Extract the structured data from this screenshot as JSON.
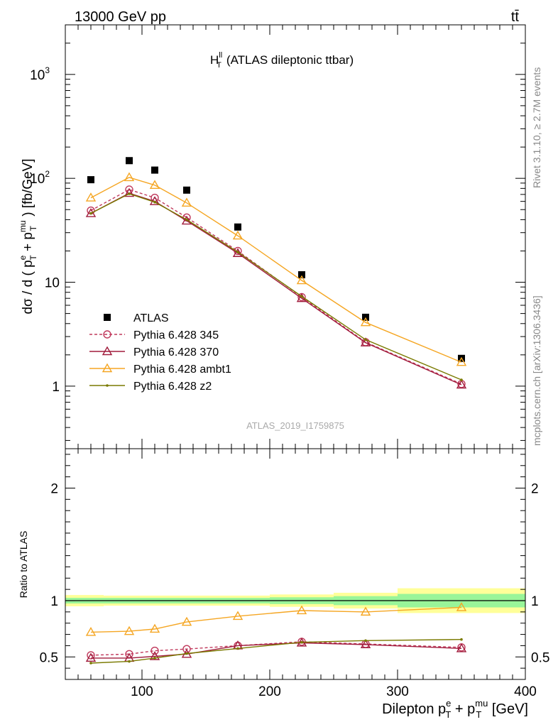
{
  "header": {
    "left": "13000 GeV pp",
    "right": "tt̄"
  },
  "side": {
    "rivet": "Rivet 3.1.10, ≥ 2.7M events",
    "mcplots": "mcplots.cern.ch [arXiv:1306.3436]"
  },
  "chart_data": [
    {
      "type": "scatter",
      "panel": "main",
      "title": "H_T^ll (ATLAS dileptonic ttbar)",
      "title_main": "H",
      "title_sup": "ll",
      "title_sub": "T",
      "title_rest": "(ATLAS dileptonic ttbar)",
      "watermark": "ATLAS_2019_I1759875",
      "ylabel": "dσ / d ( p_T^e + p_T^mu ) [fb/GeV]",
      "ylabel_parts": {
        "a": "dσ / d ( p",
        "b": "e",
        "c": "T",
        "d": " + p",
        "e": "mu",
        "f": "T",
        "g": " ) [fb/GeV]"
      },
      "yscale": "log",
      "ylim": [
        0.25,
        3000
      ],
      "xlim": [
        40,
        400
      ],
      "yticks": [
        {
          "value": 1,
          "label": "1"
        },
        {
          "value": 10,
          "label": "10"
        },
        {
          "value": 100,
          "label": "10",
          "exp": "2"
        },
        {
          "value": 1000,
          "label": "10",
          "exp": "3"
        }
      ],
      "legend_position": "left-center",
      "x": [
        60,
        90,
        110,
        135,
        175,
        225,
        275,
        350
      ],
      "series": [
        {
          "name": "ATLAS",
          "color": "#000000",
          "marker": "square",
          "line": "none",
          "values": [
            97,
            148,
            120,
            77,
            34,
            11.8,
            4.6,
            1.85
          ]
        },
        {
          "name": "Pythia 6.428 345",
          "color": "#c0395c",
          "marker": "circle",
          "line": "dashed",
          "values": [
            49,
            78,
            65,
            42,
            20,
            7.2,
            2.65,
            1.05
          ]
        },
        {
          "name": "Pythia 6.428 370",
          "color": "#a01c3c",
          "marker": "triangle",
          "line": "solid",
          "values": [
            46,
            72,
            60,
            39,
            19,
            7.0,
            2.62,
            1.03
          ]
        },
        {
          "name": "Pythia 6.428 ambt1",
          "color": "#f5a623",
          "marker": "triangle",
          "line": "solid",
          "values": [
            65,
            102,
            86,
            58,
            28,
            10.4,
            4.1,
            1.7
          ]
        },
        {
          "name": "Pythia 6.428 z2",
          "color": "#7a7a00",
          "marker": "dot",
          "line": "solid",
          "values": [
            46,
            71,
            59,
            40,
            19.5,
            7.3,
            2.8,
            1.15
          ]
        }
      ]
    },
    {
      "type": "line",
      "panel": "ratio",
      "xlabel": "Dilepton p_T^e + p_T^mu [GeV]",
      "xlabel_parts": {
        "a": "Dilepton p",
        "b": "e",
        "c": "T",
        "d": " + p",
        "e": "mu",
        "f": "T",
        "g": " [GeV]"
      },
      "ylabel": "Ratio to ATLAS",
      "yscale": "linear",
      "ylim": [
        0.3,
        2.35
      ],
      "xlim": [
        40,
        400
      ],
      "xticks": [
        100,
        200,
        300,
        400
      ],
      "yticks": [
        0.5,
        1,
        2
      ],
      "bands": [
        {
          "x0": 40,
          "x1": 70,
          "green": 0.025,
          "yellow": 0.05
        },
        {
          "x0": 70,
          "x1": 100,
          "green": 0.025,
          "yellow": 0.045
        },
        {
          "x0": 100,
          "x1": 120,
          "green": 0.025,
          "yellow": 0.045
        },
        {
          "x0": 120,
          "x1": 150,
          "green": 0.025,
          "yellow": 0.045
        },
        {
          "x0": 150,
          "x1": 200,
          "green": 0.025,
          "yellow": 0.045
        },
        {
          "x0": 200,
          "x1": 250,
          "green": 0.03,
          "yellow": 0.055
        },
        {
          "x0": 250,
          "x1": 300,
          "green": 0.04,
          "yellow": 0.07
        },
        {
          "x0": 300,
          "x1": 400,
          "green": 0.06,
          "yellow": 0.11
        }
      ],
      "x": [
        60,
        90,
        110,
        135,
        175,
        225,
        275,
        350
      ],
      "series": [
        {
          "name": "Pythia 6.428 345",
          "color": "#c0395c",
          "marker": "circle",
          "line": "dashed",
          "values": [
            0.515,
            0.525,
            0.555,
            0.57,
            0.6,
            0.635,
            0.615,
            0.585
          ]
        },
        {
          "name": "Pythia 6.428 370",
          "color": "#a01c3c",
          "marker": "triangle",
          "line": "solid",
          "values": [
            0.49,
            0.49,
            0.505,
            0.525,
            0.6,
            0.625,
            0.61,
            0.575
          ]
        },
        {
          "name": "Pythia 6.428 ambt1",
          "color": "#f5a623",
          "marker": "triangle",
          "line": "solid",
          "values": [
            0.72,
            0.728,
            0.748,
            0.81,
            0.862,
            0.912,
            0.9,
            0.94
          ]
        },
        {
          "name": "Pythia 6.428 z2",
          "color": "#7a7a00",
          "marker": "dot",
          "line": "solid",
          "values": [
            0.445,
            0.46,
            0.49,
            0.53,
            0.575,
            0.63,
            0.645,
            0.655
          ]
        }
      ]
    }
  ]
}
